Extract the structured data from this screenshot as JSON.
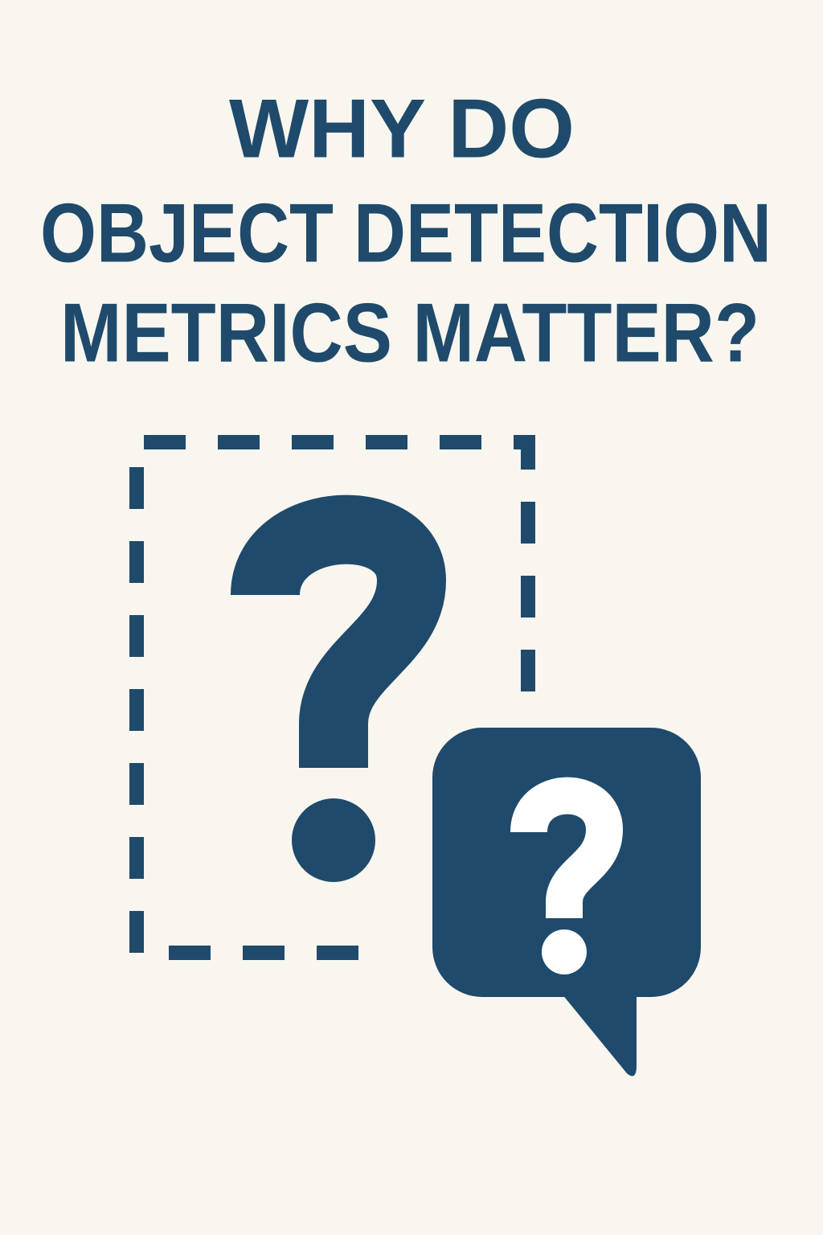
{
  "title": {
    "lines": [
      "WHY DO",
      "OBJECT DETECTION",
      "METRICS MATTER?"
    ]
  }
}
